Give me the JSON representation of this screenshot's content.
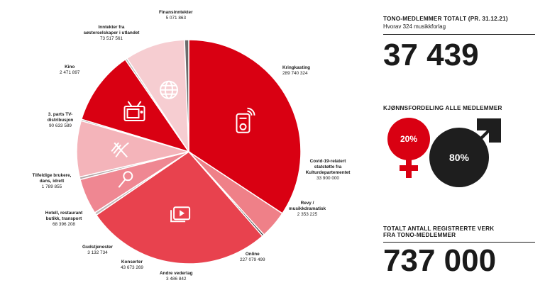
{
  "chart_data": {
    "type": "pie",
    "slices": [
      {
        "name": "Kringkasting",
        "value": 289740324,
        "color": "#d90012"
      },
      {
        "name": "Covid-19-relatert statstøtte fra Kulturdepartementet",
        "value": 33900000,
        "color": "#ef8088"
      },
      {
        "name": "Revy / musikkdramatisk",
        "value": 2353225,
        "color": "#2a2a2a"
      },
      {
        "name": "Online",
        "value": 227079499,
        "color": "#e8424e"
      },
      {
        "name": "Andre vederlag",
        "value": 3486842,
        "color": "#c4b6b8"
      },
      {
        "name": "Konserter",
        "value": 43673269,
        "color": "#ef8792"
      },
      {
        "name": "Gudstjenester",
        "value": 3132734,
        "color": "#b3a5a7"
      },
      {
        "name": "Hotell, restaurant butikk, transport",
        "value": 68396208,
        "color": "#f4b4ba"
      },
      {
        "name": "Tilfeldige brukere, dans, idrett",
        "value": 1789855,
        "color": "#8c8c8c"
      },
      {
        "name": "3. parts TV-distribusjon",
        "value": 90633589,
        "color": "#d90012"
      },
      {
        "name": "Kino",
        "value": 2471897,
        "color": "#b3b3b3"
      },
      {
        "name": "Inntekter fra søsterselskaper i utlandet",
        "value": 73517561,
        "color": "#f6cdd1"
      },
      {
        "name": "Finansinntekter",
        "value": 5071863,
        "color": "#6b6b6b"
      }
    ]
  },
  "labels": [
    {
      "name": "Finansinntekter",
      "value": "5 071 863"
    },
    {
      "name": "Inntekter fra søsterselskaper i utlandet",
      "value": "73 517 561"
    },
    {
      "name": "Kino",
      "value": "2 471 897"
    },
    {
      "name": "3. parts TV-distribusjon",
      "value": "90 633 589"
    },
    {
      "name": "Kringkasting",
      "value": "289 740 324"
    },
    {
      "name": "Covid-19-relatert statstøtte fra Kulturdepartementet",
      "value": "33 900 000"
    },
    {
      "name": "Revy / musikkdramatisk",
      "value": "2 353 225"
    },
    {
      "name": "Tilfeldige brukere, dans, idrett",
      "value": "1 789 855"
    },
    {
      "name": "Hotell, restaurant butikk, transport",
      "value": "68 396 208"
    },
    {
      "name": "Gudstjenester",
      "value": "3 132 734"
    },
    {
      "name": "Konserter",
      "value": "43 673 269"
    },
    {
      "name": "Online",
      "value": "227 079 499"
    },
    {
      "name": "Andre vederlag",
      "value": "3 486 842"
    }
  ],
  "members": {
    "heading": "TONO-MEDLEMMER TOTALT (PR. 31.12.21)",
    "sub": "Hvorav 324 musikkforlag",
    "total": "37 439"
  },
  "gender": {
    "heading": "KJØNNSFORDELING ALLE MEDLEMMER",
    "female_pct": "20%",
    "male_pct": "80%",
    "female_color": "#d90012",
    "male_color": "#1e1e1e"
  },
  "works": {
    "heading_line1": "TOTALT ANTALL REGISTRERTE VERK",
    "heading_line2": "FRA TONO-MEDLEMMER",
    "total": "737 000"
  },
  "icons": [
    "radio-icon",
    "play-icon",
    "microphone-icon",
    "cutlery-icon",
    "tv-icon",
    "globe-icon",
    "female-symbol-icon",
    "male-symbol-icon"
  ]
}
